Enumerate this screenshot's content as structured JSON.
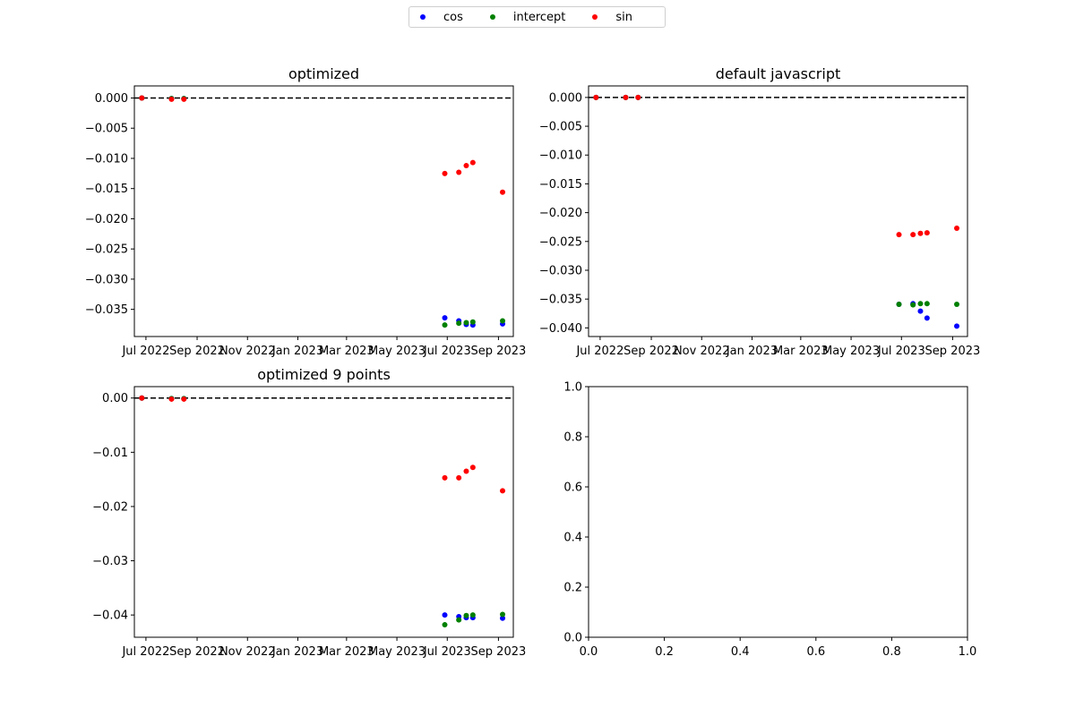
{
  "legend": {
    "items": [
      {
        "label": "cos",
        "color": "#0000ff"
      },
      {
        "label": "intercept",
        "color": "#008000"
      },
      {
        "label": "sin",
        "color": "#ff0000"
      }
    ]
  },
  "chart_data": [
    {
      "type": "scatter",
      "title": "optimized",
      "xlabel": "",
      "ylabel": "",
      "x_ticks": [
        "Jul 2022",
        "Sep 2022",
        "Nov 2022",
        "Jan 2023",
        "Mar 2023",
        "May 2023",
        "Jul 2023",
        "Sep 2023"
      ],
      "y_ticks": [
        "0.000",
        "−0.005",
        "−0.010",
        "−0.015",
        "−0.020",
        "−0.025",
        "−0.030",
        "−0.035"
      ],
      "xlim": [
        "2022-06-17",
        "2023-09-19"
      ],
      "ylim": [
        -0.0395,
        0.002
      ],
      "hline": 0,
      "series": [
        {
          "name": "cos",
          "color": "#0000ff",
          "x": [
            "2022-06-26",
            "2022-08-01",
            "2022-08-16",
            "2023-06-28",
            "2023-07-15",
            "2023-07-24",
            "2023-08-01",
            "2023-09-06"
          ],
          "y": [
            0.0,
            -0.0001,
            -0.0001,
            -0.0364,
            -0.0369,
            -0.0375,
            -0.0376,
            -0.0374
          ]
        },
        {
          "name": "intercept",
          "color": "#008000",
          "x": [
            "2022-06-26",
            "2022-08-01",
            "2022-08-16",
            "2023-06-28",
            "2023-07-15",
            "2023-07-24",
            "2023-08-01",
            "2023-09-06"
          ],
          "y": [
            0.0,
            -0.0001,
            -0.0001,
            -0.0376,
            -0.0373,
            -0.0372,
            -0.0371,
            -0.0369
          ]
        },
        {
          "name": "sin",
          "color": "#ff0000",
          "x": [
            "2022-06-26",
            "2022-08-01",
            "2022-08-16",
            "2023-06-28",
            "2023-07-15",
            "2023-07-24",
            "2023-08-01",
            "2023-09-06"
          ],
          "y": [
            0.0,
            -0.0002,
            -0.0002,
            -0.0125,
            -0.0123,
            -0.0112,
            -0.0107,
            -0.0156
          ]
        }
      ]
    },
    {
      "type": "scatter",
      "title": "default javascript",
      "xlabel": "",
      "ylabel": "",
      "x_ticks": [
        "Jul 2022",
        "Sep 2022",
        "Nov 2022",
        "Jan 2023",
        "Mar 2023",
        "May 2023",
        "Jul 2023",
        "Sep 2023"
      ],
      "y_ticks": [
        "0.000",
        "−0.005",
        "−0.010",
        "−0.015",
        "−0.020",
        "−0.025",
        "−0.030",
        "−0.035",
        "−0.040"
      ],
      "xlim": [
        "2022-06-17",
        "2023-09-19"
      ],
      "ylim": [
        -0.0415,
        0.002
      ],
      "hline": 0,
      "series": [
        {
          "name": "cos",
          "color": "#0000ff",
          "x": [
            "2022-06-26",
            "2022-08-01",
            "2022-08-16",
            "2023-06-28",
            "2023-07-15",
            "2023-07-24",
            "2023-08-01",
            "2023-09-06"
          ],
          "y": [
            0.0,
            0.0,
            0.0,
            -0.0359,
            -0.0358,
            -0.0371,
            -0.0383,
            -0.0397
          ]
        },
        {
          "name": "intercept",
          "color": "#008000",
          "x": [
            "2022-06-26",
            "2022-08-01",
            "2022-08-16",
            "2023-06-28",
            "2023-07-15",
            "2023-07-24",
            "2023-08-01",
            "2023-09-06"
          ],
          "y": [
            0.0,
            0.0,
            0.0,
            -0.0359,
            -0.036,
            -0.0358,
            -0.0358,
            -0.0359
          ]
        },
        {
          "name": "sin",
          "color": "#ff0000",
          "x": [
            "2022-06-26",
            "2022-08-01",
            "2022-08-16",
            "2023-06-28",
            "2023-07-15",
            "2023-07-24",
            "2023-08-01",
            "2023-09-06"
          ],
          "y": [
            0.0,
            0.0,
            0.0,
            -0.0238,
            -0.0238,
            -0.0236,
            -0.0235,
            -0.0227
          ]
        }
      ]
    },
    {
      "type": "scatter",
      "title": "optimized 9 points",
      "xlabel": "",
      "ylabel": "",
      "x_ticks": [
        "Jul 2022",
        "Sep 2022",
        "Nov 2022",
        "Jan 2023",
        "Mar 2023",
        "May 2023",
        "Jul 2023",
        "Sep 2023"
      ],
      "y_ticks": [
        "0.00",
        "−0.01",
        "−0.02",
        "−0.03",
        "−0.04"
      ],
      "xlim": [
        "2022-06-17",
        "2023-09-19"
      ],
      "ylim": [
        -0.0441,
        0.0021
      ],
      "hline": 0,
      "series": [
        {
          "name": "cos",
          "color": "#0000ff",
          "x": [
            "2022-06-26",
            "2022-08-01",
            "2022-08-16",
            "2023-06-28",
            "2023-07-15",
            "2023-07-24",
            "2023-08-01",
            "2023-09-06"
          ],
          "y": [
            0.0,
            -0.0001,
            -0.0001,
            -0.04,
            -0.0403,
            -0.0405,
            -0.0405,
            -0.0406
          ]
        },
        {
          "name": "intercept",
          "color": "#008000",
          "x": [
            "2022-06-26",
            "2022-08-01",
            "2022-08-16",
            "2023-06-28",
            "2023-07-15",
            "2023-07-24",
            "2023-08-01",
            "2023-09-06"
          ],
          "y": [
            0.0,
            -0.0001,
            -0.0001,
            -0.0418,
            -0.0409,
            -0.0401,
            -0.04,
            -0.0399
          ]
        },
        {
          "name": "sin",
          "color": "#ff0000",
          "x": [
            "2022-06-26",
            "2022-08-01",
            "2022-08-16",
            "2023-06-28",
            "2023-07-15",
            "2023-07-24",
            "2023-08-01",
            "2023-09-06"
          ],
          "y": [
            0.0,
            -0.0002,
            -0.0002,
            -0.0147,
            -0.0147,
            -0.0135,
            -0.0128,
            -0.0171
          ]
        }
      ]
    },
    {
      "type": "scatter",
      "title": "",
      "xlabel": "",
      "ylabel": "",
      "x_ticks": [
        "0.0",
        "0.2",
        "0.4",
        "0.6",
        "0.8",
        "1.0"
      ],
      "y_ticks": [
        "0.0",
        "0.2",
        "0.4",
        "0.6",
        "0.8",
        "1.0"
      ],
      "xlim": [
        0,
        1
      ],
      "ylim": [
        0,
        1
      ],
      "series": []
    }
  ]
}
